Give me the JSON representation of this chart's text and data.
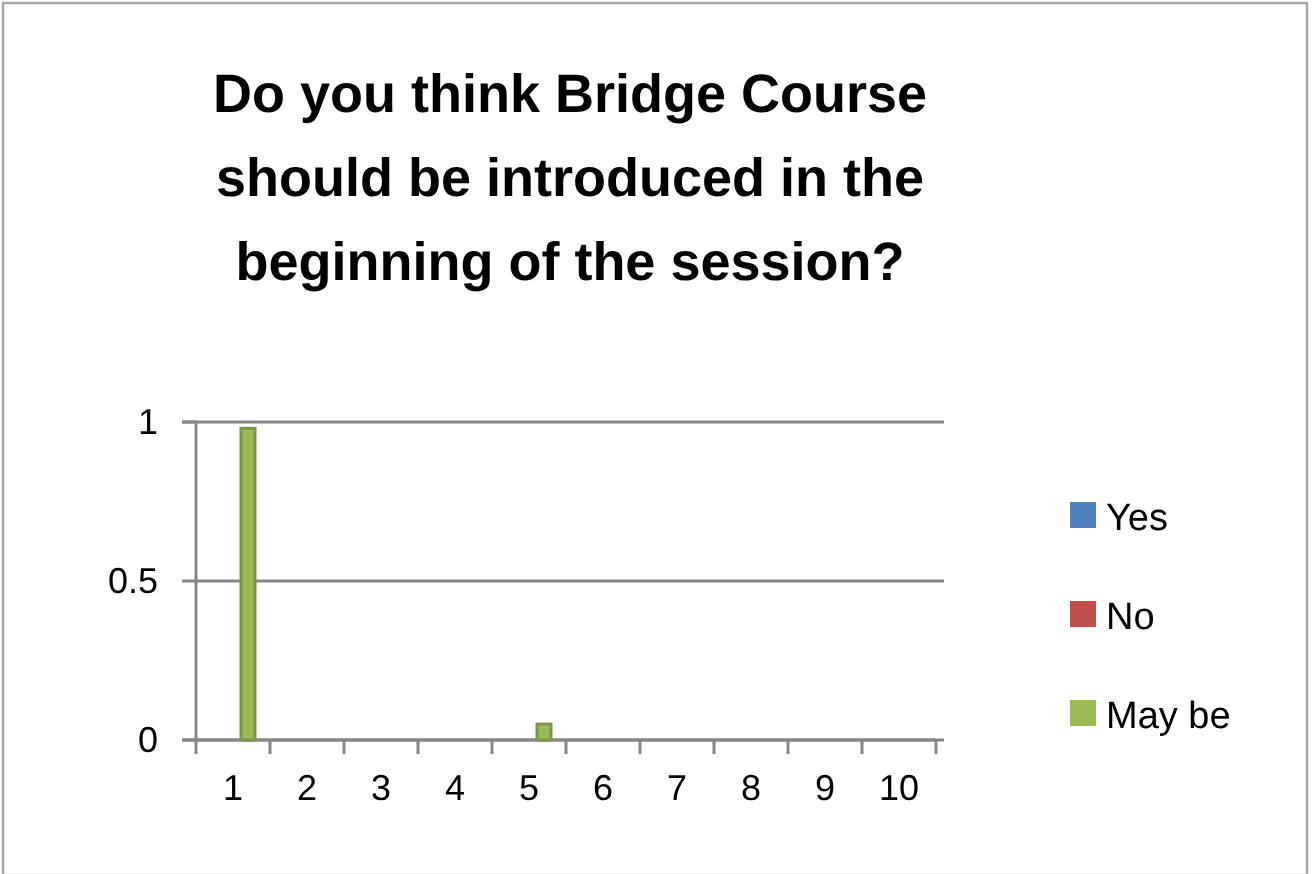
{
  "chart_data": {
    "type": "bar",
    "title": "Do you think Bridge Course should be introduced in the beginning of the session?",
    "categories": [
      "1",
      "2",
      "3",
      "4",
      "5",
      "6",
      "7",
      "8",
      "9",
      "10"
    ],
    "series": [
      {
        "name": "Yes",
        "color": "#4f81bd",
        "values": [
          0,
          null,
          0,
          null,
          0,
          null,
          null,
          null,
          null,
          null
        ]
      },
      {
        "name": "No",
        "color": "#c0504d",
        "values": [
          0,
          null,
          0,
          null,
          0,
          null,
          null,
          null,
          null,
          null
        ]
      },
      {
        "name": "May be",
        "color": "#9bbb59",
        "values": [
          0.98,
          null,
          0,
          null,
          0.05,
          null,
          null,
          null,
          null,
          null
        ]
      }
    ],
    "ylim": [
      0,
      1
    ],
    "yticks": [
      0,
      0.5,
      1
    ],
    "grid": "y",
    "legend": "right"
  }
}
